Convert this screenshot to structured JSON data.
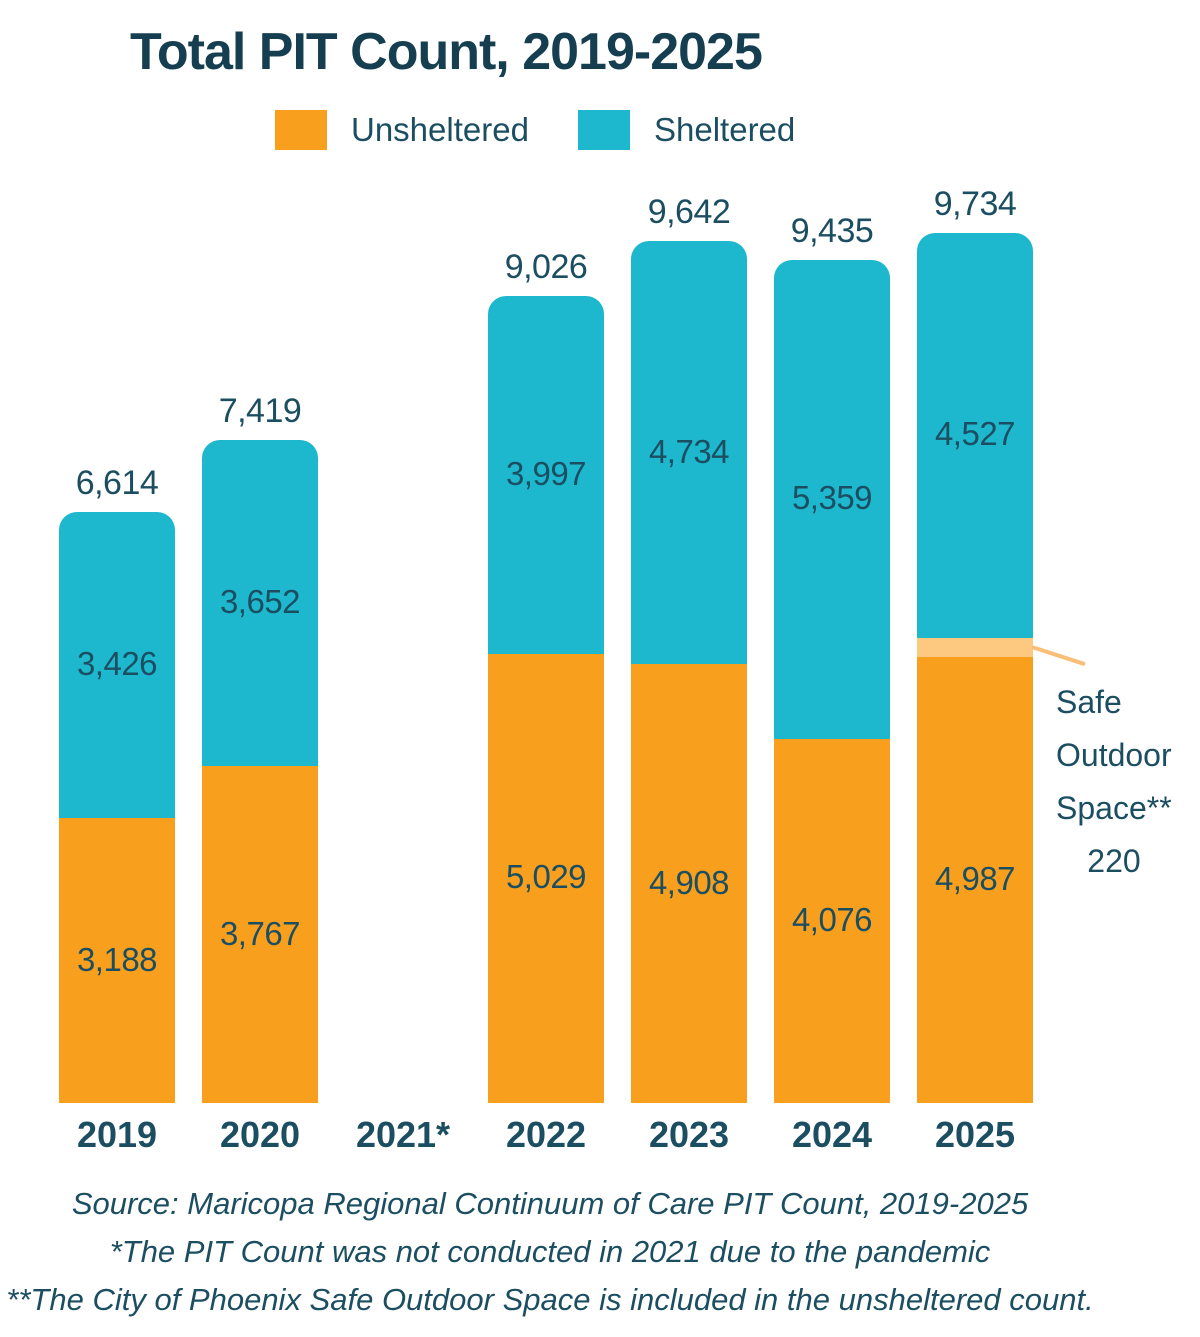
{
  "title": "Total PIT Count, 2019-2025",
  "legend": [
    {
      "label": "Unsheltered",
      "color": "#F8A01E"
    },
    {
      "label": "Sheltered",
      "color": "#1EB8CE"
    }
  ],
  "annotation": {
    "lines": [
      "Safe",
      "Outdoor",
      "Space**"
    ],
    "value": "220"
  },
  "footer": [
    "Source: Maricopa Regional Continuum of Care PIT Count, 2019-2025",
    "*The PIT Count was not conducted in 2021 due to the pandemic",
    "**The City of Phoenix Safe Outdoor Space is included in the unsheltered count."
  ],
  "colors": {
    "unsheltered": "#F8A01E",
    "sheltered": "#1EB8CE",
    "safe_outdoor_space": "#FDC87F",
    "callout_line": "#F9BE77",
    "title_text": "#153F51",
    "body_text": "#1C4E62"
  },
  "chart_data": {
    "type": "bar",
    "stacked": true,
    "title": "Total PIT Count, 2019-2025",
    "categories": [
      "2019",
      "2020",
      "2021*",
      "2022",
      "2023",
      "2024",
      "2025"
    ],
    "series": [
      {
        "name": "Unsheltered",
        "color": "#F8A01E",
        "show_labels": true,
        "values": [
          3188,
          3767,
          null,
          5029,
          4908,
          4076,
          4987
        ]
      },
      {
        "name": "Safe Outdoor Space**",
        "color": "#FDC87F",
        "show_labels": false,
        "values": [
          0,
          0,
          null,
          0,
          0,
          0,
          220
        ]
      },
      {
        "name": "Sheltered",
        "color": "#1EB8CE",
        "show_labels": true,
        "values": [
          3426,
          3652,
          null,
          3997,
          4734,
          5359,
          4527
        ]
      }
    ],
    "totals": [
      6614,
      7419,
      null,
      9026,
      9642,
      9435,
      9734
    ],
    "notes": {
      "missing_year": "2021*",
      "missing_reason": "*The PIT Count was not conducted in 2021 due to the pandemic",
      "safe_outdoor_space_2025": 220
    },
    "legend_position": "top",
    "grid": false,
    "ylim": [
      0,
      9734
    ]
  }
}
